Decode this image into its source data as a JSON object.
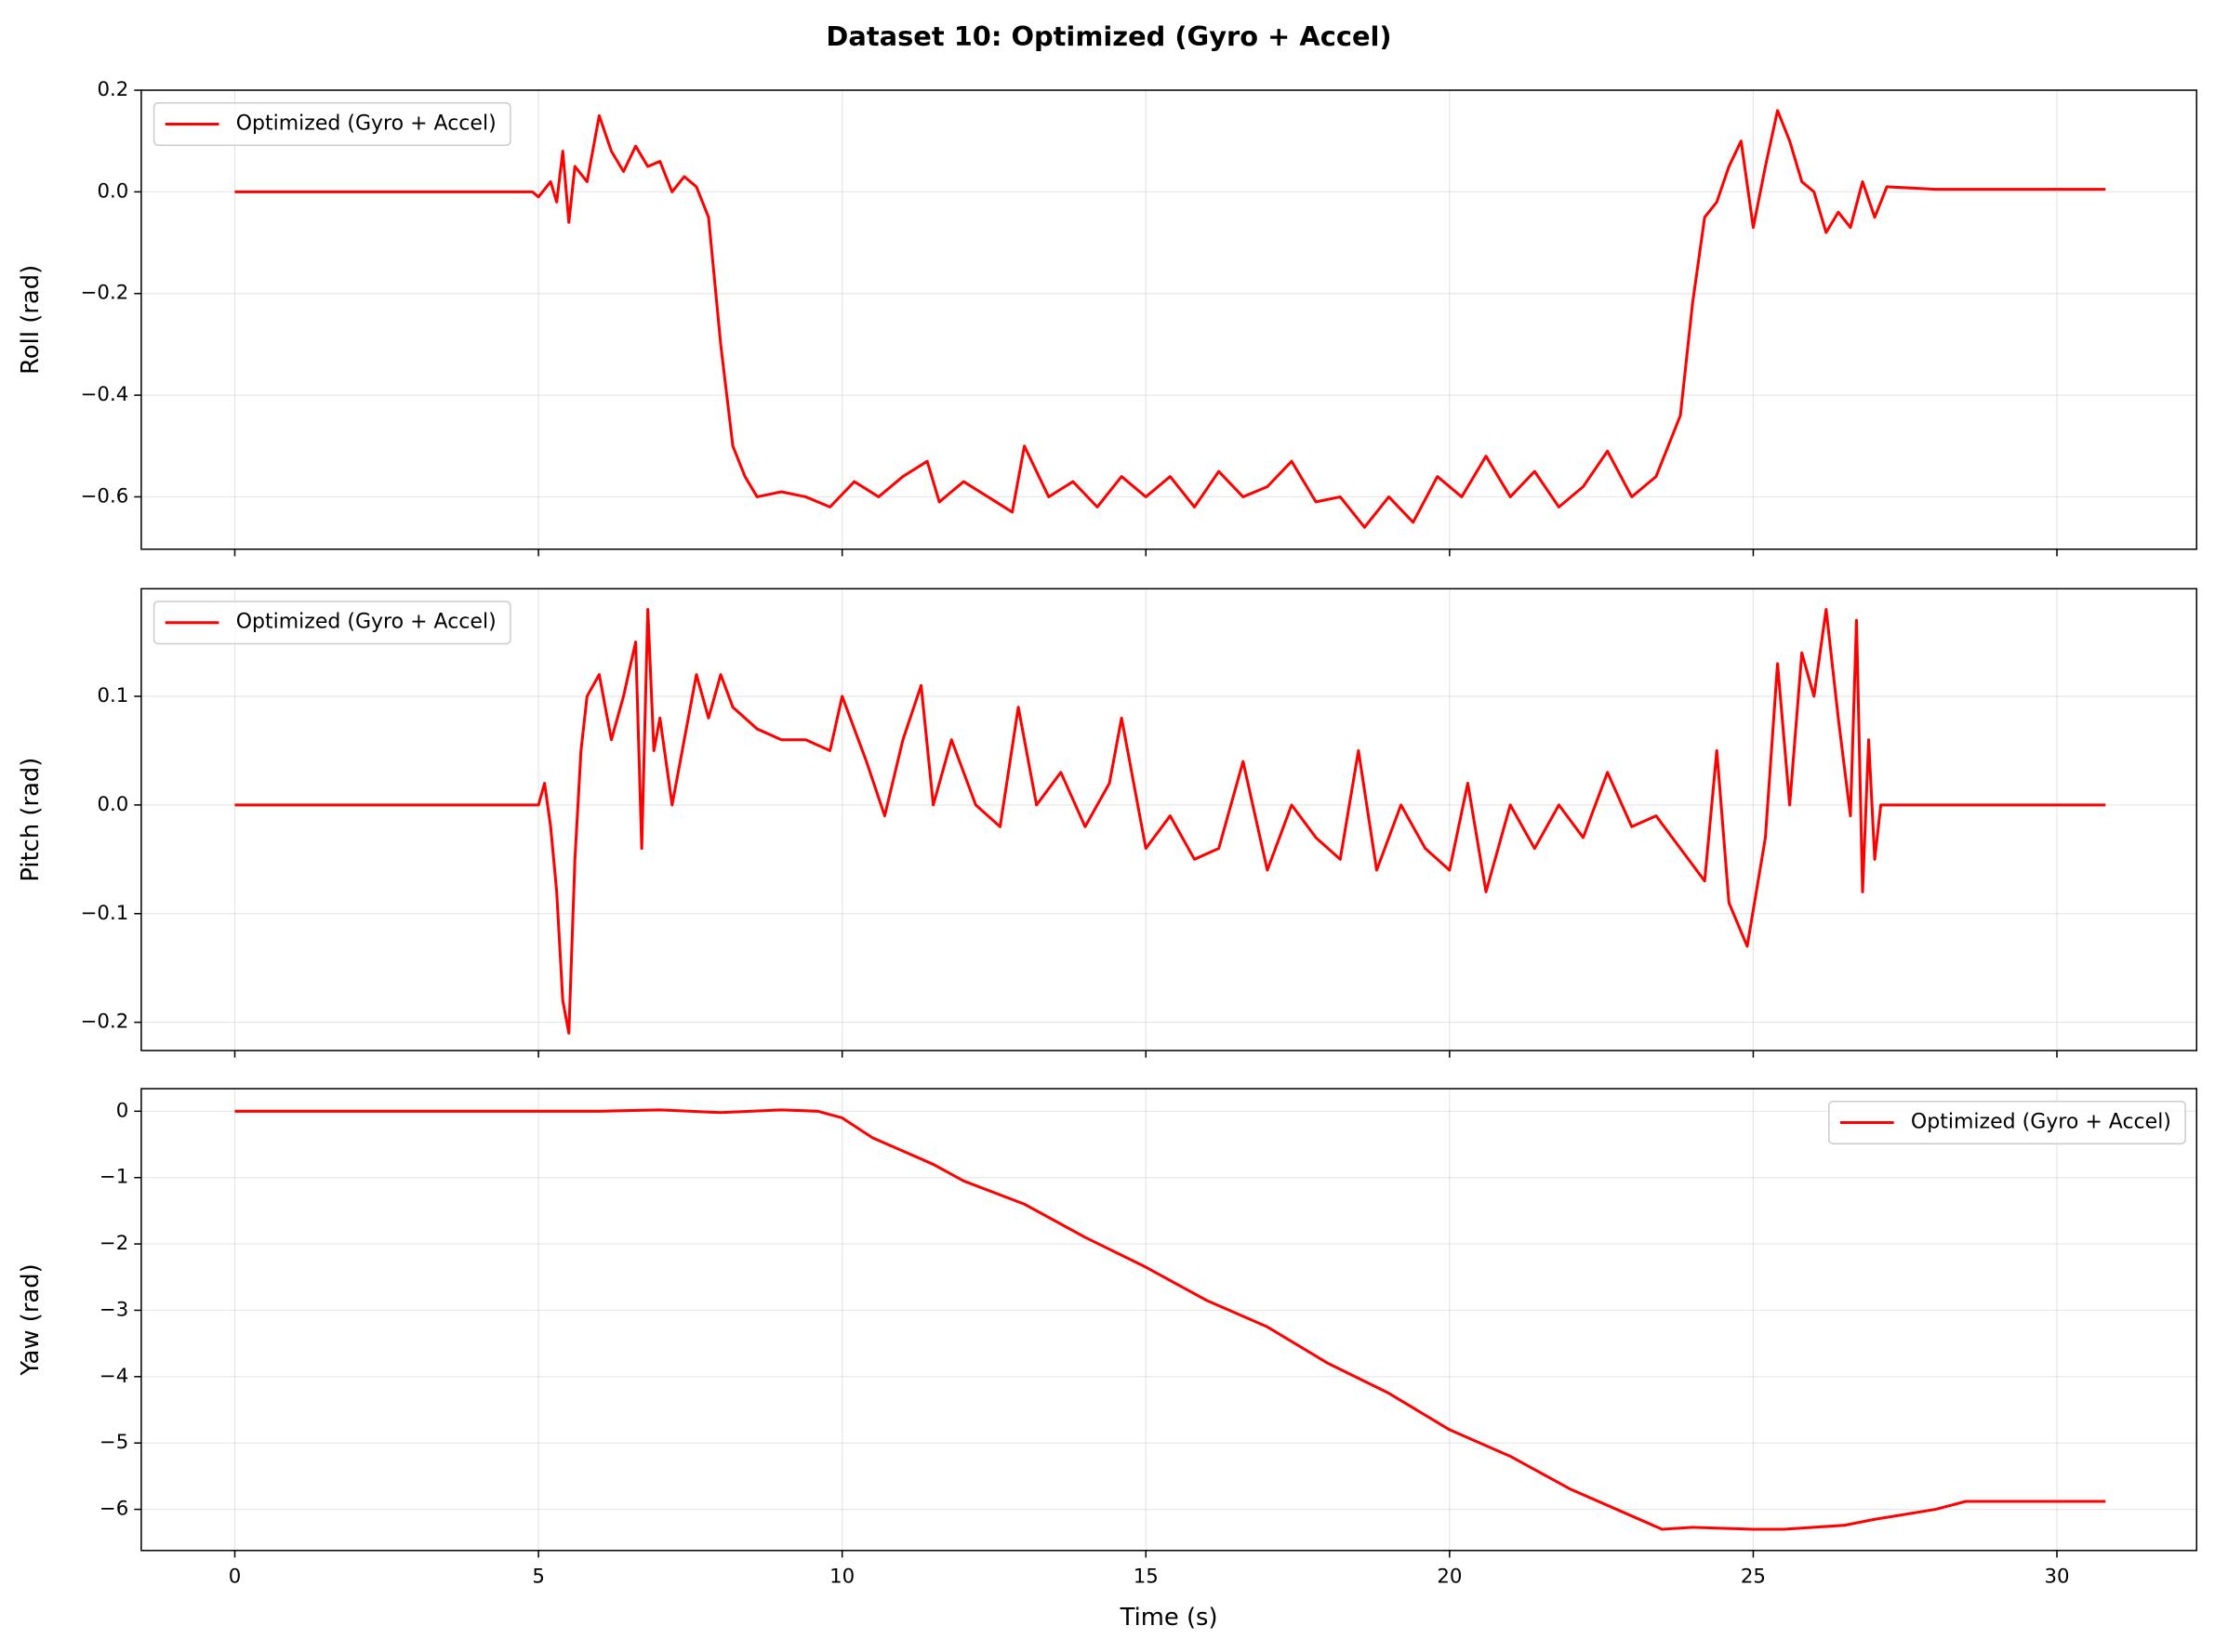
{
  "title": "Dataset 10: Optimized (Gyro + Accel)",
  "chart_data": [
    {
      "type": "line",
      "ylabel": "Roll (rad)",
      "grid": true,
      "legend": "upper left",
      "xlim": [
        -1.54,
        32.3
      ],
      "xticks": [
        0,
        5,
        10,
        15,
        20,
        25,
        30
      ],
      "ylim": [
        -0.703,
        0.2
      ],
      "yticks": [
        {
          "value": -0.6,
          "label": "−0.6"
        },
        {
          "value": -0.4,
          "label": "−0.4"
        },
        {
          "value": -0.2,
          "label": "−0.2"
        },
        {
          "value": 0.0,
          "label": "0.0"
        },
        0.2
      ],
      "x": [
        0,
        4.9,
        5.0,
        5.2,
        5.3,
        5.4,
        5.5,
        5.6,
        5.8,
        6.0,
        6.2,
        6.4,
        6.6,
        6.8,
        7.0,
        7.2,
        7.4,
        7.6,
        7.8,
        8.0,
        8.2,
        8.4,
        8.6,
        9.0,
        9.4,
        9.8,
        10.2,
        10.6,
        11.0,
        11.4,
        11.6,
        12.0,
        12.4,
        12.8,
        13.0,
        13.4,
        13.8,
        14.2,
        14.6,
        15.0,
        15.4,
        15.8,
        16.2,
        16.6,
        17.0,
        17.4,
        17.8,
        18.2,
        18.6,
        19.0,
        19.4,
        19.8,
        20.2,
        20.6,
        21.0,
        21.4,
        21.8,
        22.2,
        22.6,
        23.0,
        23.4,
        23.6,
        23.8,
        24.0,
        24.2,
        24.4,
        24.6,
        24.8,
        25.0,
        25.2,
        25.4,
        25.6,
        25.8,
        26.0,
        26.2,
        26.4,
        26.6,
        26.8,
        27.0,
        27.2,
        28,
        29,
        30,
        30.8
      ],
      "series": [
        {
          "name": "Optimized (Gyro + Accel)",
          "color": "#ff0000",
          "values": [
            0,
            0,
            -0.01,
            0.02,
            -0.02,
            0.08,
            -0.06,
            0.05,
            0.02,
            0.15,
            0.08,
            0.04,
            0.09,
            0.05,
            0.06,
            0.0,
            0.03,
            0.01,
            -0.05,
            -0.3,
            -0.5,
            -0.56,
            -0.6,
            -0.59,
            -0.6,
            -0.62,
            -0.57,
            -0.6,
            -0.56,
            -0.53,
            -0.61,
            -0.57,
            -0.6,
            -0.63,
            -0.5,
            -0.6,
            -0.57,
            -0.62,
            -0.56,
            -0.6,
            -0.56,
            -0.62,
            -0.55,
            -0.6,
            -0.58,
            -0.53,
            -0.61,
            -0.6,
            -0.66,
            -0.6,
            -0.65,
            -0.56,
            -0.6,
            -0.52,
            -0.6,
            -0.55,
            -0.62,
            -0.58,
            -0.51,
            -0.6,
            -0.56,
            -0.5,
            -0.44,
            -0.22,
            -0.05,
            -0.02,
            0.05,
            0.1,
            -0.07,
            0.05,
            0.16,
            0.1,
            0.02,
            0.0,
            -0.08,
            -0.04,
            -0.07,
            0.02,
            -0.05,
            0.01,
            0.005,
            0.005,
            0.005,
            0.005
          ]
        }
      ]
    },
    {
      "type": "line",
      "ylabel": "Pitch (rad)",
      "grid": true,
      "legend": "upper left",
      "xlim": [
        -1.54,
        32.3
      ],
      "xticks": [
        0,
        5,
        10,
        15,
        20,
        25,
        30
      ],
      "ylim": [
        -0.226,
        0.199
      ],
      "yticks": [
        {
          "value": -0.2,
          "label": "−0.2"
        },
        {
          "value": -0.1,
          "label": "−0.1"
        },
        {
          "value": 0.0,
          "label": "0.0"
        },
        0.1
      ],
      "x": [
        0,
        5.0,
        5.1,
        5.2,
        5.3,
        5.4,
        5.5,
        5.6,
        5.7,
        5.8,
        6.0,
        6.2,
        6.4,
        6.6,
        6.7,
        6.8,
        6.9,
        7.0,
        7.2,
        7.4,
        7.6,
        7.8,
        8.0,
        8.2,
        8.6,
        9.0,
        9.4,
        9.8,
        10.0,
        10.4,
        10.7,
        11.0,
        11.3,
        11.5,
        11.8,
        12.2,
        12.6,
        12.9,
        13.2,
        13.6,
        14.0,
        14.4,
        14.6,
        15.0,
        15.4,
        15.8,
        16.2,
        16.6,
        17.0,
        17.4,
        17.8,
        18.2,
        18.5,
        18.8,
        19.2,
        19.6,
        20.0,
        20.3,
        20.6,
        21.0,
        21.4,
        21.8,
        22.2,
        22.6,
        23.0,
        23.4,
        23.8,
        24.2,
        24.4,
        24.6,
        24.9,
        25.2,
        25.4,
        25.6,
        25.8,
        26.0,
        26.2,
        26.4,
        26.6,
        26.7,
        26.8,
        26.9,
        27.0,
        27.1,
        28,
        30.8
      ],
      "series": [
        {
          "name": "Optimized (Gyro + Accel)",
          "color": "#ff0000",
          "values": [
            0,
            0,
            0.02,
            -0.02,
            -0.08,
            -0.18,
            -0.21,
            -0.05,
            0.05,
            0.1,
            0.12,
            0.06,
            0.1,
            0.15,
            -0.04,
            0.18,
            0.05,
            0.08,
            0.0,
            0.06,
            0.12,
            0.08,
            0.12,
            0.09,
            0.07,
            0.06,
            0.06,
            0.05,
            0.1,
            0.04,
            -0.01,
            0.06,
            0.11,
            0.0,
            0.06,
            0.0,
            -0.02,
            0.09,
            0.0,
            0.03,
            -0.02,
            0.02,
            0.08,
            -0.04,
            -0.01,
            -0.05,
            -0.04,
            0.04,
            -0.06,
            0.0,
            -0.03,
            -0.05,
            0.05,
            -0.06,
            0.0,
            -0.04,
            -0.06,
            0.02,
            -0.08,
            0.0,
            -0.04,
            0.0,
            -0.03,
            0.03,
            -0.02,
            -0.01,
            -0.04,
            -0.07,
            0.05,
            -0.09,
            -0.13,
            -0.03,
            0.13,
            0.0,
            0.14,
            0.1,
            0.18,
            0.08,
            -0.01,
            0.17,
            -0.08,
            0.06,
            -0.05,
            0.0,
            0,
            0
          ]
        }
      ]
    },
    {
      "type": "line",
      "ylabel": "Yaw (rad)",
      "xlabel": "Time (s)",
      "grid": true,
      "legend": "upper right",
      "xlim": [
        -1.54,
        32.3
      ],
      "xticks": [
        0,
        5,
        10,
        15,
        20,
        25,
        30
      ],
      "ylim": [
        -6.62,
        0.34
      ],
      "yticks": [
        {
          "value": -6,
          "label": "−6"
        },
        {
          "value": -5,
          "label": "−5"
        },
        {
          "value": -4,
          "label": "−4"
        },
        {
          "value": -3,
          "label": "−3"
        },
        {
          "value": -2,
          "label": "−2"
        },
        {
          "value": -1,
          "label": "−1"
        },
        0
      ],
      "x": [
        0,
        5,
        6,
        7,
        8,
        9,
        9.6,
        10,
        10.5,
        11,
        11.5,
        12,
        13,
        14,
        15,
        16,
        17,
        18,
        19,
        20,
        21,
        22,
        23,
        23.5,
        24,
        25,
        25.5,
        26.5,
        27,
        28,
        28.5,
        29,
        30.8
      ],
      "series": [
        {
          "name": "Optimized (Gyro + Accel)",
          "color": "#ff0000",
          "values": [
            0,
            0,
            0,
            0.02,
            -0.02,
            0.02,
            0.0,
            -0.1,
            -0.4,
            -0.6,
            -0.8,
            -1.05,
            -1.4,
            -1.9,
            -2.35,
            -2.85,
            -3.25,
            -3.8,
            -4.25,
            -4.8,
            -5.2,
            -5.7,
            -6.1,
            -6.3,
            -6.27,
            -6.3,
            -6.3,
            -6.24,
            -6.15,
            -6.0,
            -5.88,
            -5.88,
            -5.88
          ]
        }
      ]
    }
  ]
}
